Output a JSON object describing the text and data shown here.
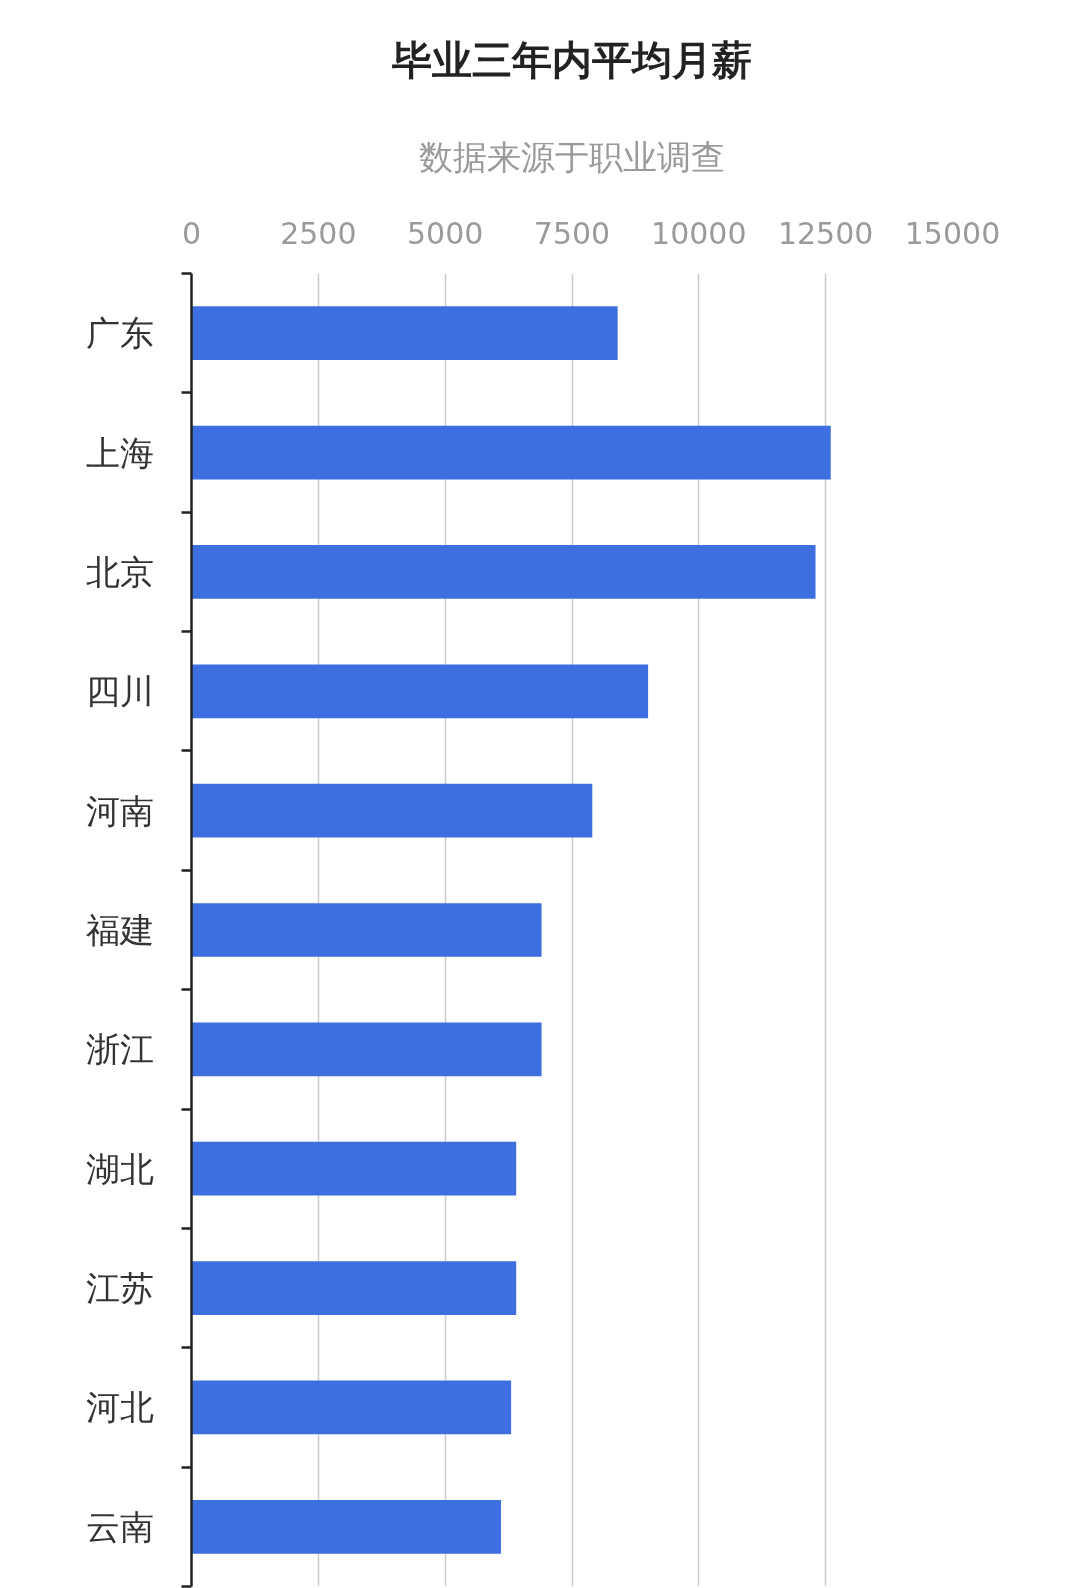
{
  "chart_data": {
    "type": "bar",
    "orientation": "horizontal",
    "title": "毕业三年内平均月薪",
    "subtitle": "数据来源于职业调查",
    "categories": [
      "广东",
      "上海",
      "北京",
      "四川",
      "河南",
      "福建",
      "浙江",
      "湖北",
      "江苏",
      "河北",
      "云南"
    ],
    "values": [
      8400,
      12600,
      12300,
      9000,
      7900,
      6900,
      6900,
      6400,
      6400,
      6300,
      6100
    ],
    "color": "#3d6fe0",
    "xlim": [
      0,
      15000
    ],
    "xticks": [
      0,
      2500,
      5000,
      7500,
      10000,
      12500,
      15000
    ],
    "grid": "x"
  }
}
